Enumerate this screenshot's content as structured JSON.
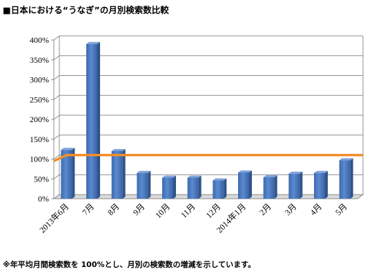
{
  "header": {
    "title": "■日本における“うなぎ”の月別検索数比較"
  },
  "footer": {
    "note": "※年平均月間検索数を 100%とし、月別の検索数の増減を示しています。"
  },
  "chart_data": {
    "type": "bar",
    "categories": [
      "2013年6月",
      "7月",
      "8月",
      "9月",
      "10月",
      "11月",
      "12月",
      "2014年1月",
      "2月",
      "3月",
      "4月",
      "5月"
    ],
    "series": [
      {
        "values": [
          123,
          390,
          120,
          65,
          53,
          53,
          46,
          66,
          54,
          63,
          65,
          97
        ]
      }
    ],
    "reference_line": {
      "value": 110,
      "color": "#F28E2B"
    },
    "ylim": [
      0,
      400
    ],
    "yticks": [
      0,
      50,
      100,
      150,
      200,
      250,
      300,
      350,
      400
    ],
    "ytick_labels": [
      "0%",
      "50%",
      "100%",
      "150%",
      "200%",
      "250%",
      "300%",
      "350%",
      "400%"
    ],
    "grid": true,
    "bar_color": "#4A78BE",
    "xlabel": "",
    "ylabel": ""
  }
}
